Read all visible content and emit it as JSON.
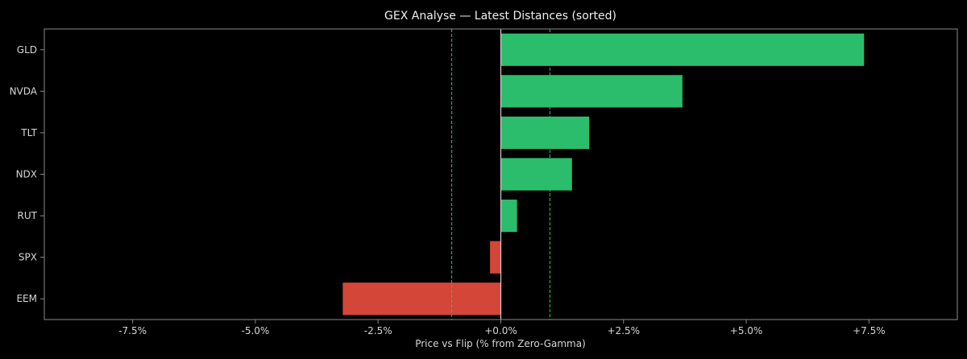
{
  "chart_data": {
    "type": "bar",
    "orientation": "horizontal",
    "title": "GEX Analyse — Latest Distances (sorted)",
    "xlabel": "Price vs Flip (% from Zero-Gamma)",
    "ylabel": "",
    "xlim": [
      -9.3,
      9.3
    ],
    "x_ticks": [
      -7.5,
      -5.0,
      -2.5,
      0.0,
      2.5,
      5.0,
      7.5
    ],
    "x_tick_labels": [
      "-7.5%",
      "-5.0%",
      "-2.5%",
      "+0.0%",
      "+2.5%",
      "+5.0%",
      "+7.5%"
    ],
    "categories": [
      "GLD",
      "NVDA",
      "TLT",
      "NDX",
      "RUT",
      "SPX",
      "EEM"
    ],
    "values": [
      7.4,
      3.7,
      1.8,
      1.45,
      0.33,
      -0.22,
      -3.22
    ],
    "reference_lines": [
      -1.0,
      0.0,
      1.0
    ],
    "grid": false,
    "colors": {
      "positive": "#2bbd6b",
      "negative": "#d44638",
      "band_line": "#2bbd6b",
      "zero_line": "#cfcfcf",
      "frame": "#8a8a8a",
      "background": "#000000"
    }
  }
}
